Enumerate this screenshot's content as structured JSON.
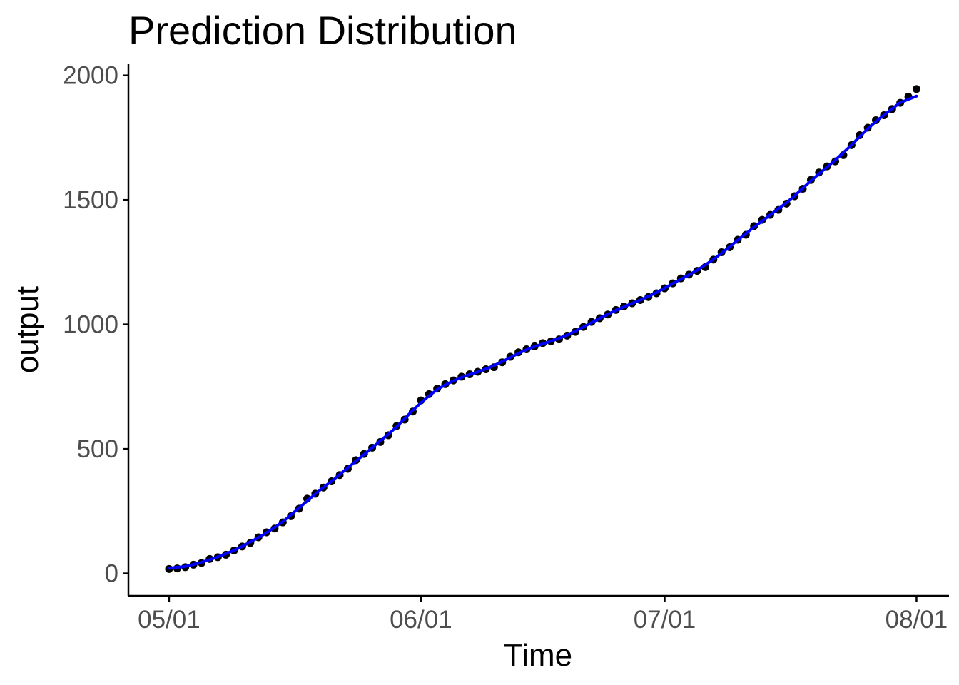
{
  "chart_data": {
    "type": "scatter",
    "title": "Prediction Distribution",
    "xlabel": "Time",
    "ylabel": "output",
    "x_ticks": [
      "05/01",
      "06/01",
      "07/01",
      "08/01"
    ],
    "x_tick_dates": [
      "2020-05-01",
      "2020-06-01",
      "2020-07-01",
      "2020-08-01"
    ],
    "y_ticks": [
      0,
      500,
      1000,
      1500,
      2000
    ],
    "ylim": [
      -90,
      2045
    ],
    "xlim": [
      "2020-04-26",
      "2020-08-05"
    ],
    "grid": false,
    "legend": "none",
    "colors": {
      "points": "#000000",
      "line": "#0000ff",
      "axis": "#000000",
      "tick_text": "#4d4d4d"
    },
    "series": [
      {
        "x": [
          "2020-05-01",
          "2020-05-02",
          "2020-05-03",
          "2020-05-04",
          "2020-05-05",
          "2020-05-06",
          "2020-05-07",
          "2020-05-08",
          "2020-05-09",
          "2020-05-10",
          "2020-05-11",
          "2020-05-12",
          "2020-05-13",
          "2020-05-14",
          "2020-05-15",
          "2020-05-16",
          "2020-05-17",
          "2020-05-18",
          "2020-05-19",
          "2020-05-20",
          "2020-05-21",
          "2020-05-22",
          "2020-05-23",
          "2020-05-24",
          "2020-05-25",
          "2020-05-26",
          "2020-05-27",
          "2020-05-28",
          "2020-05-29",
          "2020-05-30",
          "2020-05-31",
          "2020-06-01",
          "2020-06-02",
          "2020-06-03",
          "2020-06-04",
          "2020-06-05",
          "2020-06-06",
          "2020-06-07",
          "2020-06-08",
          "2020-06-09",
          "2020-06-10",
          "2020-06-11",
          "2020-06-12",
          "2020-06-13",
          "2020-06-14",
          "2020-06-15",
          "2020-06-16",
          "2020-06-17",
          "2020-06-18",
          "2020-06-19",
          "2020-06-20",
          "2020-06-21",
          "2020-06-22",
          "2020-06-23",
          "2020-06-24",
          "2020-06-25",
          "2020-06-26",
          "2020-06-27",
          "2020-06-28",
          "2020-06-29",
          "2020-06-30",
          "2020-07-01",
          "2020-07-02",
          "2020-07-03",
          "2020-07-04",
          "2020-07-05",
          "2020-07-06",
          "2020-07-07",
          "2020-07-08",
          "2020-07-09",
          "2020-07-10",
          "2020-07-11",
          "2020-07-12",
          "2020-07-13",
          "2020-07-14",
          "2020-07-15",
          "2020-07-16",
          "2020-07-17",
          "2020-07-18",
          "2020-07-19",
          "2020-07-20",
          "2020-07-21",
          "2020-07-22",
          "2020-07-23",
          "2020-07-24",
          "2020-07-25",
          "2020-07-26",
          "2020-07-27",
          "2020-07-28",
          "2020-07-29",
          "2020-07-30",
          "2020-07-31",
          "2020-08-01"
        ],
        "y": [
          18,
          20,
          25,
          35,
          42,
          58,
          65,
          75,
          92,
          108,
          122,
          145,
          165,
          180,
          205,
          230,
          260,
          300,
          320,
          345,
          370,
          395,
          420,
          455,
          480,
          505,
          528,
          555,
          592,
          618,
          650,
          695,
          720,
          742,
          760,
          775,
          790,
          800,
          810,
          820,
          828,
          848,
          870,
          888,
          900,
          912,
          925,
          932,
          940,
          955,
          970,
          990,
          1010,
          1025,
          1040,
          1058,
          1072,
          1085,
          1098,
          1110,
          1125,
          1145,
          1165,
          1185,
          1200,
          1215,
          1230,
          1260,
          1290,
          1310,
          1340,
          1360,
          1395,
          1420,
          1440,
          1460,
          1485,
          1515,
          1545,
          1580,
          1610,
          1635,
          1655,
          1680,
          1720,
          1760,
          1790,
          1820,
          1840,
          1865,
          1890,
          1915,
          1945
        ]
      }
    ]
  }
}
